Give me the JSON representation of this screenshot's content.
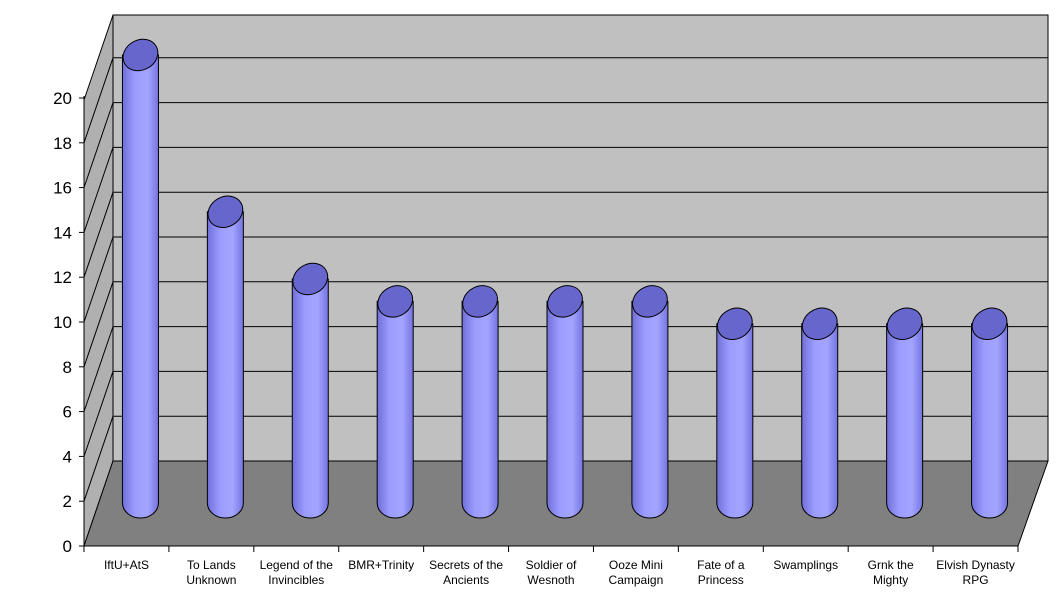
{
  "chart_data": {
    "type": "bar",
    "bar_shape": "cylinder",
    "three_d": true,
    "categories": [
      [
        "IftU+AtS"
      ],
      [
        "To Lands",
        "Unknown"
      ],
      [
        "Legend of the",
        "Invincibles"
      ],
      [
        "BMR+Trinity"
      ],
      [
        "Secrets of the",
        "Ancients"
      ],
      [
        "Soldier of",
        "Wesnoth"
      ],
      [
        "Ooze Mini",
        "Campaign"
      ],
      [
        "Fate of a",
        "Princess"
      ],
      [
        "Swamplings"
      ],
      [
        "Grnk the",
        "Mighty"
      ],
      [
        "Elvish Dynasty",
        "RPG"
      ]
    ],
    "values": [
      20,
      13,
      10,
      9,
      9,
      9,
      9,
      8,
      8,
      8,
      8
    ],
    "ylim": [
      0,
      20
    ],
    "yticks": [
      "0",
      "2",
      "4",
      "6",
      "8",
      "10",
      "12",
      "14",
      "16",
      "18",
      "20"
    ],
    "grid": true,
    "legend": "none",
    "colors": {
      "bar": "#9999ff",
      "bar_dark": "#6666cc",
      "back_wall": "#c0c0c0",
      "side_wall": "#b0b0b0",
      "floor": "#808080",
      "gridline": "#000000"
    }
  }
}
